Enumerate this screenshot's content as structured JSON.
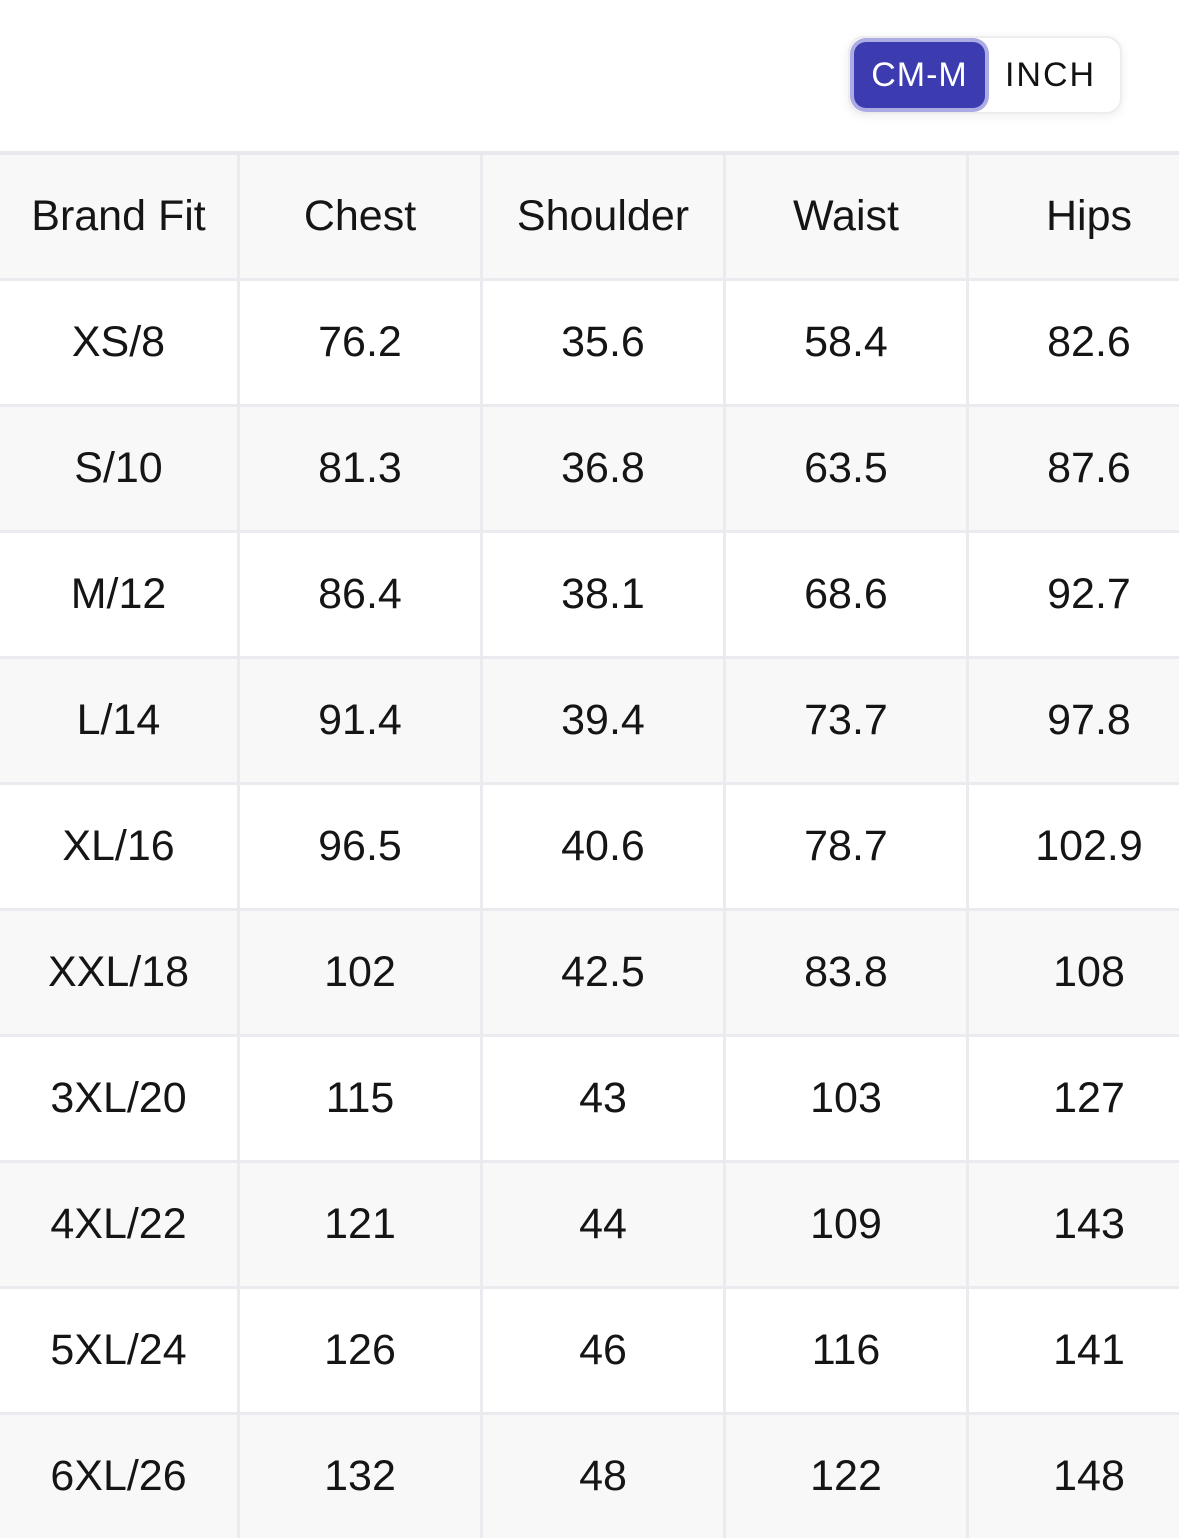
{
  "unit_toggle": {
    "options": [
      {
        "label": "CM-M",
        "selected": true
      },
      {
        "label": "INCH",
        "selected": false
      }
    ],
    "selected_bg": "#3c3cb0",
    "selected_ring": "#acace4"
  },
  "size_table": {
    "columns": [
      "Brand Fit",
      "Chest",
      "Shoulder",
      "Waist",
      "Hips"
    ],
    "rows": [
      [
        "XS/8",
        "76.2",
        "35.6",
        "58.4",
        "82.6"
      ],
      [
        "S/10",
        "81.3",
        "36.8",
        "63.5",
        "87.6"
      ],
      [
        "M/12",
        "86.4",
        "38.1",
        "68.6",
        "92.7"
      ],
      [
        "L/14",
        "91.4",
        "39.4",
        "73.7",
        "97.8"
      ],
      [
        "XL/16",
        "96.5",
        "40.6",
        "78.7",
        "102.9"
      ],
      [
        "XXL/18",
        "102",
        "42.5",
        "83.8",
        "108"
      ],
      [
        "3XL/20",
        "115",
        "43",
        "103",
        "127"
      ],
      [
        "4XL/22",
        "121",
        "44",
        "109",
        "143"
      ],
      [
        "5XL/24",
        "126",
        "46",
        "116",
        "141"
      ],
      [
        "6XL/26",
        "132",
        "48",
        "122",
        "148"
      ]
    ]
  }
}
